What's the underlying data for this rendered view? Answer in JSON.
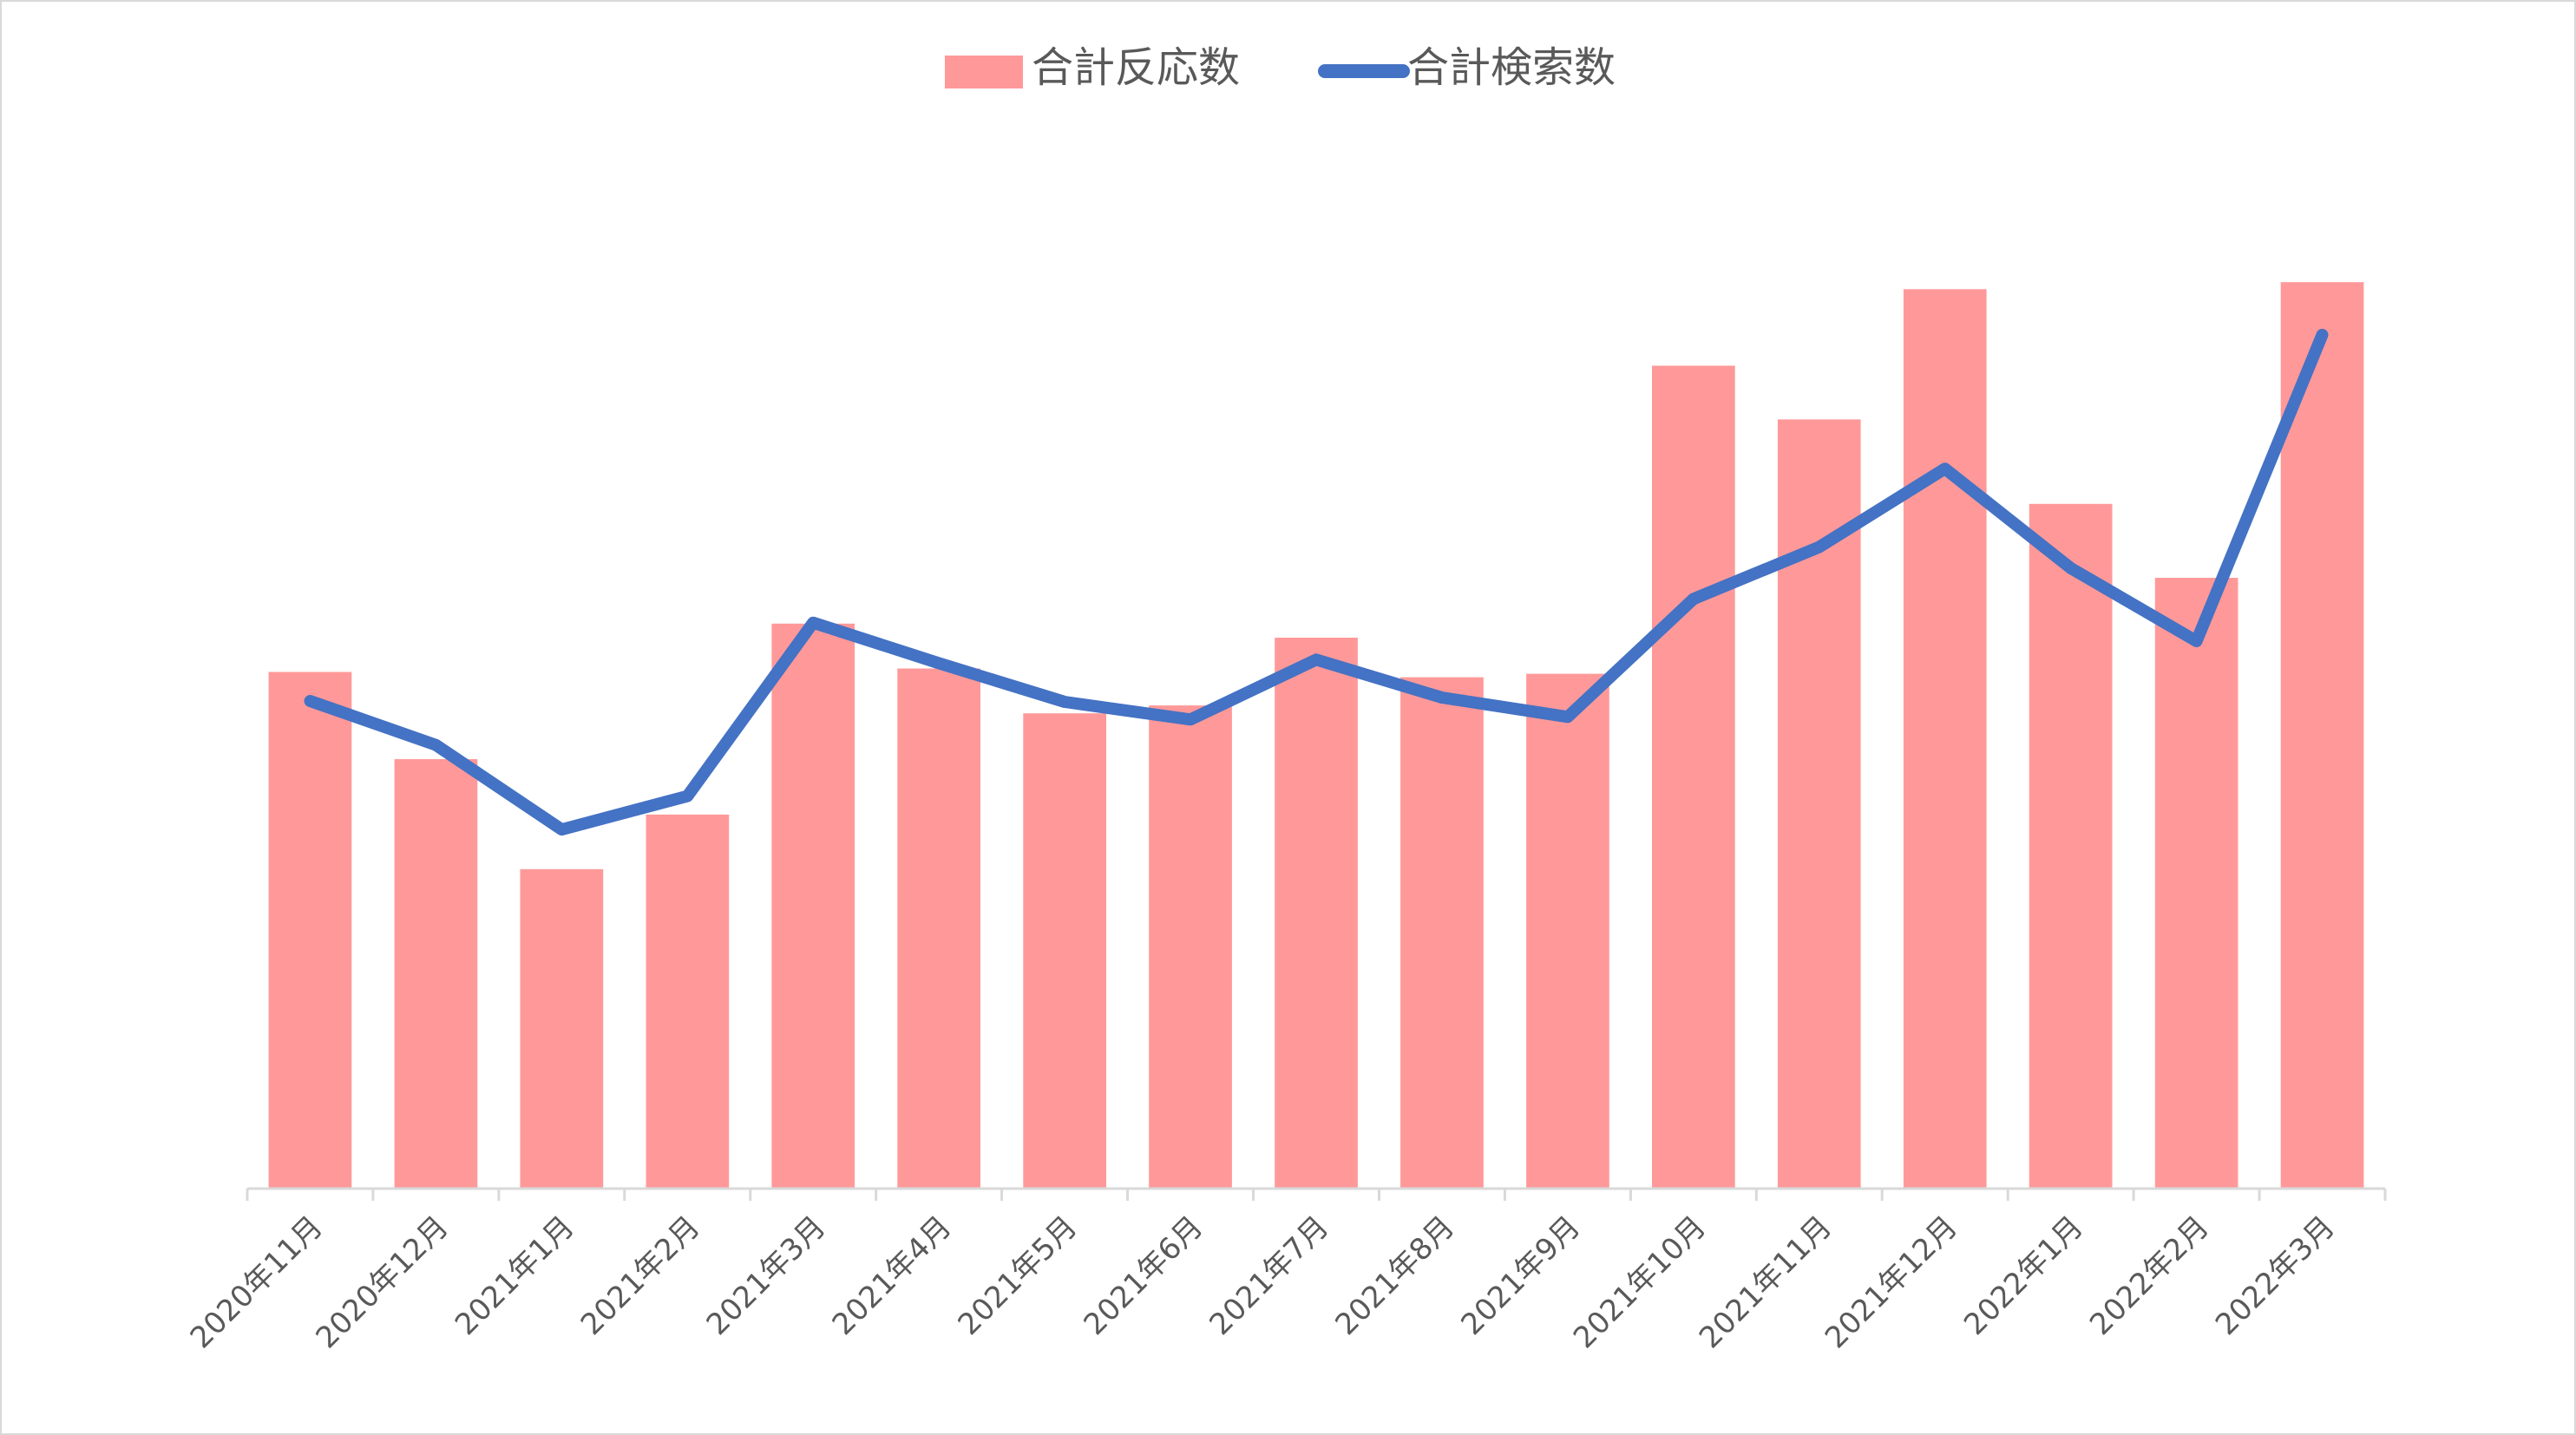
{
  "chart_data": {
    "type": "bar",
    "title": "",
    "xlabel": "",
    "ylabel": "",
    "categories": [
      "2020年11月",
      "2020年12月",
      "2021年1月",
      "2021年2月",
      "2021年3月",
      "2021年4月",
      "2021年5月",
      "2021年6月",
      "2021年7月",
      "2021年8月",
      "2021年9月",
      "2021年10月",
      "2021年11月",
      "2021年12月",
      "2022年1月",
      "2022年2月",
      "2022年3月"
    ],
    "series": [
      {
        "name": "合計反応数",
        "type": "bar",
        "color": "#ff9999",
        "values": [
          587,
          488,
          363,
          425,
          642,
          591,
          540,
          549,
          626,
          581,
          585,
          935,
          874,
          1022,
          778,
          694,
          1030
        ]
      },
      {
        "name": "合計検索数",
        "type": "line",
        "color": "#4472c4",
        "values": [
          554,
          504,
          408,
          446,
          643,
          597,
          553,
          533,
          601,
          558,
          536,
          670,
          729,
          818,
          705,
          622,
          970
        ]
      }
    ],
    "ylim": [
      0,
      1250
    ],
    "grid": false,
    "y_axis_visible": false,
    "legend": "top-center"
  }
}
